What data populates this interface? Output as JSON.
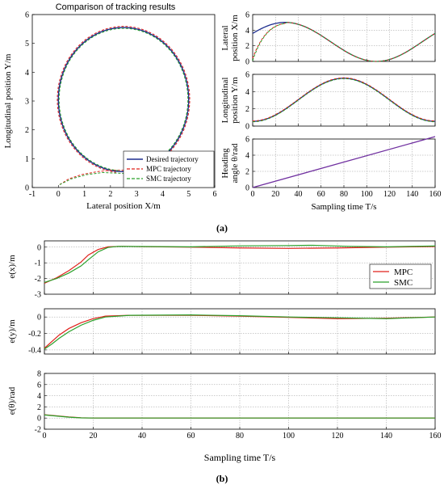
{
  "figure": {
    "caption_a": "(a)",
    "caption_b": "(b)"
  },
  "colors": {
    "desired": "#1f2f8f",
    "mpc": "#e0201b",
    "smc": "#2aa02a",
    "heading": "#7030a0"
  },
  "chart_data": [
    {
      "id": "traj",
      "type": "line",
      "title": "Comparison of tracking results",
      "xlabel": "Lateral position X/m",
      "ylabel": "Longitudinal position Y/m",
      "xlim": [
        -1,
        6
      ],
      "ylim": [
        0,
        6
      ],
      "xticks": [
        "-1",
        "0",
        "1",
        "2",
        "3",
        "4",
        "5",
        "6"
      ],
      "yticks": [
        "0",
        "1",
        "2",
        "3",
        "4",
        "5",
        "6"
      ],
      "grid": false,
      "legend_position": "bottom-right",
      "series": [
        {
          "name": "Desired trajectory",
          "color": "#1f2f8f",
          "dash": "solid",
          "circle": {
            "cx": 2.5,
            "cy": 3.05,
            "r": 2.5
          }
        },
        {
          "name": "MPC trajectory",
          "color": "#e0201b",
          "dash": "dashed",
          "approach": [
            [
              0.05,
              0.1
            ],
            [
              0.4,
              0.3
            ],
            [
              0.9,
              0.45
            ],
            [
              1.5,
              0.55
            ],
            [
              2.0,
              0.6
            ],
            [
              2.5,
              0.6
            ],
            [
              3.0,
              0.6
            ],
            [
              3.5,
              0.62
            ]
          ]
        },
        {
          "name": "SMC trajectory",
          "color": "#2aa02a",
          "dash": "dashed",
          "approach": [
            [
              0.05,
              0.1
            ],
            [
              0.5,
              0.3
            ],
            [
              1.1,
              0.45
            ],
            [
              1.7,
              0.52
            ],
            [
              2.2,
              0.5
            ],
            [
              2.7,
              0.48
            ],
            [
              3.2,
              0.52
            ],
            [
              3.7,
              0.58
            ]
          ]
        }
      ]
    },
    {
      "id": "latx",
      "type": "line",
      "ylabel": [
        "Lateral",
        "position X/m"
      ],
      "xlim": [
        0,
        160
      ],
      "ylim": [
        0,
        6
      ],
      "xticks": [
        "0",
        "20",
        "40",
        "60",
        "80",
        "100",
        "120",
        "140",
        "160"
      ],
      "yticks": [
        "0",
        "2",
        "4",
        "6"
      ],
      "grid": true,
      "series": [
        {
          "name": "Desired trajectory",
          "color": "#1f2f8f",
          "fn": "x"
        },
        {
          "name": "MPC trajectory",
          "color": "#e0201b",
          "fn": "x",
          "start": 0.4
        },
        {
          "name": "SMC trajectory",
          "color": "#2aa02a",
          "fn": "x",
          "start": 0.1
        }
      ]
    },
    {
      "id": "lony",
      "type": "line",
      "ylabel": [
        "Longitudinal",
        "position Y/m"
      ],
      "xlim": [
        0,
        160
      ],
      "ylim": [
        0,
        6
      ],
      "xticks": [
        "0",
        "20",
        "40",
        "60",
        "80",
        "100",
        "120",
        "140",
        "160"
      ],
      "yticks": [
        "0",
        "2",
        "4",
        "6"
      ],
      "grid": true,
      "series": [
        {
          "name": "Desired trajectory",
          "color": "#1f2f8f",
          "fn": "y"
        },
        {
          "name": "MPC trajectory",
          "color": "#e0201b",
          "fn": "y"
        },
        {
          "name": "SMC trajectory",
          "color": "#2aa02a",
          "fn": "y"
        }
      ]
    },
    {
      "id": "head",
      "type": "line",
      "ylabel": [
        "Heading",
        "angle θ/rad"
      ],
      "xlabel": "Sampling time T/s",
      "xlim": [
        0,
        160
      ],
      "ylim": [
        0,
        6
      ],
      "xticks": [
        "0",
        "20",
        "40",
        "60",
        "80",
        "100",
        "120",
        "140",
        "160"
      ],
      "yticks": [
        "0",
        "2",
        "4",
        "6"
      ],
      "grid": true,
      "series": [
        {
          "name": "Heading",
          "color": "#7030a0",
          "points": [
            [
              0,
              0
            ],
            [
              160,
              6.3
            ]
          ]
        }
      ]
    },
    {
      "id": "ex",
      "type": "line",
      "ylabel": "e(x)/m",
      "xlim": [
        0,
        160
      ],
      "ylim": [
        -3,
        0.4
      ],
      "xticks": [
        "0",
        "20",
        "40",
        "60",
        "80",
        "100",
        "120",
        "140",
        "160"
      ],
      "yticks": [
        "-3",
        "-2",
        "-1",
        "0"
      ],
      "grid": true,
      "legend_position": "right",
      "series": [
        {
          "name": "MPC",
          "color": "#e0201b",
          "points": [
            [
              0,
              -2.3
            ],
            [
              5,
              -1.95
            ],
            [
              10,
              -1.5
            ],
            [
              15,
              -0.95
            ],
            [
              18,
              -0.5
            ],
            [
              22,
              -0.15
            ],
            [
              26,
              0.02
            ],
            [
              32,
              0.05
            ],
            [
              40,
              0.03
            ],
            [
              60,
              0.0
            ],
            [
              80,
              -0.05
            ],
            [
              100,
              -0.08
            ],
            [
              120,
              -0.05
            ],
            [
              140,
              0.0
            ],
            [
              160,
              0.04
            ]
          ]
        },
        {
          "name": "SMC",
          "color": "#2aa02a",
          "points": [
            [
              0,
              -2.25
            ],
            [
              5,
              -2.0
            ],
            [
              10,
              -1.65
            ],
            [
              15,
              -1.2
            ],
            [
              18,
              -0.8
            ],
            [
              22,
              -0.3
            ],
            [
              26,
              -0.02
            ],
            [
              30,
              0.05
            ],
            [
              40,
              0.04
            ],
            [
              60,
              0.02
            ],
            [
              80,
              0.08
            ],
            [
              100,
              0.1
            ],
            [
              110,
              0.12
            ],
            [
              125,
              0.05
            ],
            [
              140,
              0.02
            ],
            [
              160,
              0.07
            ]
          ]
        }
      ]
    },
    {
      "id": "ey",
      "type": "line",
      "ylabel": "e(y)/m",
      "xlim": [
        0,
        160
      ],
      "ylim": [
        -0.45,
        0.1
      ],
      "xticks": [
        "0",
        "20",
        "40",
        "60",
        "80",
        "100",
        "120",
        "140",
        "160"
      ],
      "yticks": [
        "-0.4",
        "-0.2",
        "0"
      ],
      "grid": true,
      "series": [
        {
          "name": "MPC",
          "color": "#e0201b",
          "points": [
            [
              0,
              -0.38
            ],
            [
              3,
              -0.3
            ],
            [
              6,
              -0.22
            ],
            [
              10,
              -0.14
            ],
            [
              15,
              -0.07
            ],
            [
              20,
              -0.02
            ],
            [
              25,
              0.01
            ],
            [
              35,
              0.02
            ],
            [
              60,
              0.02
            ],
            [
              80,
              0.01
            ],
            [
              100,
              -0.005
            ],
            [
              120,
              -0.02
            ],
            [
              140,
              -0.015
            ],
            [
              160,
              0.0
            ]
          ]
        },
        {
          "name": "SMC",
          "color": "#2aa02a",
          "points": [
            [
              0,
              -0.39
            ],
            [
              3,
              -0.33
            ],
            [
              6,
              -0.26
            ],
            [
              10,
              -0.18
            ],
            [
              15,
              -0.1
            ],
            [
              20,
              -0.04
            ],
            [
              25,
              0.0
            ],
            [
              35,
              0.02
            ],
            [
              60,
              0.025
            ],
            [
              80,
              0.015
            ],
            [
              100,
              0.0
            ],
            [
              120,
              -0.01
            ],
            [
              140,
              -0.02
            ],
            [
              160,
              0.0
            ]
          ]
        }
      ]
    },
    {
      "id": "et",
      "type": "line",
      "ylabel": "e(θ)/rad",
      "xlabel": "Sampling time T/s",
      "xlim": [
        0,
        160
      ],
      "ylim": [
        -2,
        8
      ],
      "xticks": [
        "0",
        "20",
        "40",
        "60",
        "80",
        "100",
        "120",
        "140",
        "160"
      ],
      "yticks": [
        "-2",
        "0",
        "2",
        "4",
        "6",
        "8"
      ],
      "grid": true,
      "series": [
        {
          "name": "MPC",
          "color": "#e0201b",
          "points": [
            [
              0,
              0.6
            ],
            [
              5,
              0.4
            ],
            [
              10,
              0.2
            ],
            [
              15,
              0.05
            ],
            [
              20,
              0.0
            ],
            [
              160,
              0.0
            ]
          ]
        },
        {
          "name": "SMC",
          "color": "#2aa02a",
          "points": [
            [
              0,
              0.55
            ],
            [
              5,
              0.35
            ],
            [
              10,
              0.15
            ],
            [
              15,
              0.03
            ],
            [
              20,
              0.0
            ],
            [
              160,
              0.0
            ]
          ]
        }
      ]
    }
  ]
}
